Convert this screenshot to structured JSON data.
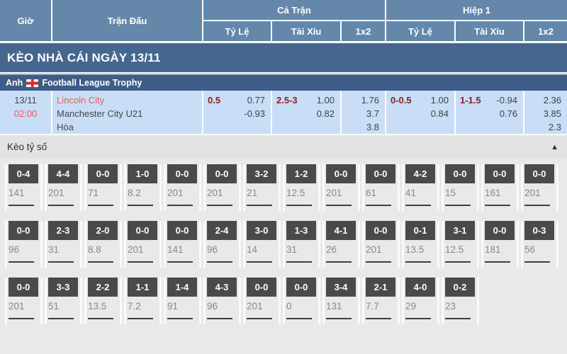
{
  "colors": {
    "headerBlue": "#6587aa",
    "bannerBlue": "#45678f",
    "leagueBlue": "#3d5c86",
    "leagueTopLine": "#8fa9c6",
    "matchRowBg": "#c9ddf6",
    "maroon": "#8e1c1c",
    "red": "#f2595b",
    "darkText": "#454550",
    "oddsText": "#3c424d",
    "grayText": "#87878f",
    "boxDark": "#4a4a4a",
    "sectionBg": "#e9e9e9",
    "barBg": "#e3e3e3",
    "gutter": "#fafafa"
  },
  "table_header": {
    "time": "Giờ",
    "match": "Trận Đấu",
    "full_match": "Cả Trận",
    "first_half": "Hiệp 1",
    "odds": "Tỷ Lệ",
    "over_under": "Tài Xỉu",
    "x12": "1x2"
  },
  "banner": {
    "title": "KÈO NHÀ CÁI NGÀY 13/11"
  },
  "league": {
    "country": "Anh",
    "name": "Football League Trophy"
  },
  "match": {
    "date": "13/11",
    "time": "02:00",
    "home": "Lincoln City",
    "away": "Manchester City U21",
    "draw_label": "Hòa",
    "full": {
      "handicap": {
        "line": "0.5",
        "odds1": "0.77",
        "odds2": "-0.93"
      },
      "ou": {
        "line": "2.5-3",
        "odds1": "1.00",
        "odds2": "0.82"
      },
      "x12": {
        "home": "1.76",
        "draw": "3.7",
        "away": "3.8"
      }
    },
    "half": {
      "handicap": {
        "line": "0-0.5",
        "odds1": "1.00",
        "odds2": "0.84"
      },
      "ou": {
        "line": "1-1.5",
        "odds1": "-0.94",
        "odds2": "0.76"
      },
      "x12": {
        "home": "2.36",
        "draw": "3.85",
        "away": "2.3"
      }
    }
  },
  "score_section": {
    "title": "Kèo tỷ số",
    "collapse_icon": "▲",
    "rows": [
      [
        {
          "score": "0-4",
          "odds": "141"
        },
        {
          "score": "4-4",
          "odds": "201"
        },
        {
          "score": "0-0",
          "odds": "71"
        },
        {
          "score": "1-0",
          "odds": "8.2"
        },
        {
          "score": "0-0",
          "odds": "201"
        },
        {
          "score": "0-0",
          "odds": "201"
        },
        {
          "score": "3-2",
          "odds": "21"
        },
        {
          "score": "1-2",
          "odds": "12.5"
        },
        {
          "score": "0-0",
          "odds": "201"
        },
        {
          "score": "0-0",
          "odds": "61"
        },
        {
          "score": "4-2",
          "odds": "41"
        },
        {
          "score": "0-0",
          "odds": "15"
        },
        {
          "score": "0-0",
          "odds": "161"
        },
        {
          "score": "0-0",
          "odds": "201"
        }
      ],
      [
        {
          "score": "0-0",
          "odds": "96"
        },
        {
          "score": "2-3",
          "odds": "31"
        },
        {
          "score": "2-0",
          "odds": "8.8"
        },
        {
          "score": "0-0",
          "odds": "201"
        },
        {
          "score": "0-0",
          "odds": "141"
        },
        {
          "score": "2-4",
          "odds": "96"
        },
        {
          "score": "3-0",
          "odds": "14"
        },
        {
          "score": "1-3",
          "odds": "31"
        },
        {
          "score": "4-1",
          "odds": "26"
        },
        {
          "score": "0-0",
          "odds": "201"
        },
        {
          "score": "0-1",
          "odds": "13.5"
        },
        {
          "score": "3-1",
          "odds": "12.5"
        },
        {
          "score": "0-0",
          "odds": "181"
        },
        {
          "score": "0-3",
          "odds": "56"
        }
      ],
      [
        {
          "score": "0-0",
          "odds": "201"
        },
        {
          "score": "3-3",
          "odds": "51"
        },
        {
          "score": "2-2",
          "odds": "13.5"
        },
        {
          "score": "1-1",
          "odds": "7.2"
        },
        {
          "score": "1-4",
          "odds": "91"
        },
        {
          "score": "4-3",
          "odds": "96"
        },
        {
          "score": "0-0",
          "odds": "201"
        },
        {
          "score": "0-0",
          "odds": "0"
        },
        {
          "score": "3-4",
          "odds": "131"
        },
        {
          "score": "2-1",
          "odds": "7.7"
        },
        {
          "score": "4-0",
          "odds": "29"
        },
        {
          "score": "0-2",
          "odds": "23"
        }
      ]
    ]
  }
}
